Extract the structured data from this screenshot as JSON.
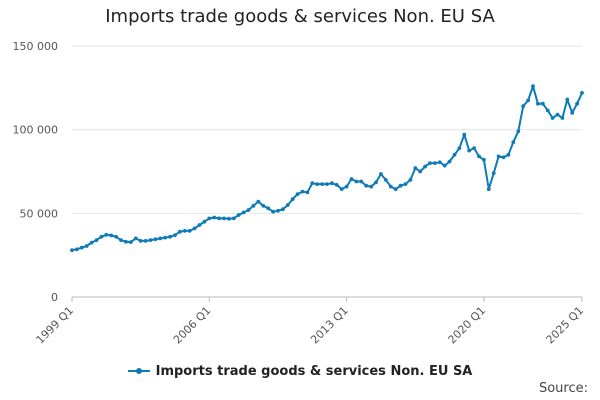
{
  "chart_data": {
    "type": "line",
    "title": "Imports trade goods & services Non. EU SA",
    "xlabel": "",
    "ylabel": "",
    "x_tick_labels": [
      "1999 Q1",
      "2006 Q1",
      "2013 Q1",
      "2020 Q1",
      "2025 Q1"
    ],
    "y_tick_labels": [
      "0",
      "50 000",
      "100 000",
      "150 000"
    ],
    "ylim": [
      0,
      150000
    ],
    "grid": "horizontal",
    "legend": "bottom",
    "series": [
      {
        "name": "Imports trade goods & services Non. EU SA",
        "color": "#0f7ab8",
        "start": "1999 Q1",
        "frequency": "quarterly",
        "values": [
          28000,
          28500,
          29500,
          30500,
          32500,
          34000,
          36000,
          37200,
          36800,
          36000,
          34000,
          33000,
          32800,
          35000,
          33500,
          33500,
          34000,
          34500,
          35000,
          35500,
          36000,
          37000,
          39000,
          39500,
          39500,
          41000,
          43000,
          45000,
          47000,
          47500,
          47000,
          47000,
          46800,
          47000,
          49000,
          50500,
          52000,
          54500,
          57000,
          54500,
          53000,
          51000,
          51500,
          52500,
          55000,
          58500,
          61500,
          63000,
          62500,
          68000,
          67500,
          67500,
          67500,
          68000,
          67000,
          64500,
          66000,
          70500,
          69000,
          69000,
          66500,
          66000,
          68500,
          73500,
          70000,
          66000,
          64500,
          66500,
          67500,
          70000,
          77000,
          75000,
          78000,
          80000,
          80000,
          80500,
          78500,
          81000,
          85000,
          89000,
          97000,
          87500,
          89000,
          84000,
          82000,
          64500,
          74000,
          84000,
          83500,
          85000,
          92500,
          99000,
          114000,
          117500,
          126000,
          115500,
          115500,
          111500,
          107000,
          109000,
          107000,
          118000,
          110000,
          115500,
          122000
        ]
      }
    ]
  },
  "footer": {
    "source_label": "Source:"
  }
}
